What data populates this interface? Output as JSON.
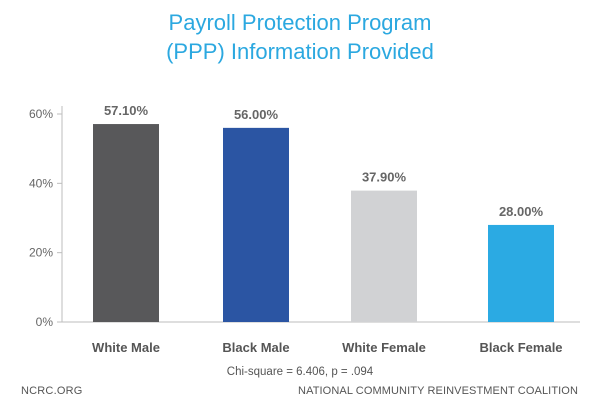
{
  "title_line1": "Payroll Protection Program",
  "title_line2": "(PPP) Information Provided",
  "footnote": "Chi-square = 6.406, p = .094",
  "footer_left": "NCRC.ORG",
  "footer_right": "NATIONAL COMMUNITY REINVESTMENT COALITION",
  "chart_data": {
    "type": "bar",
    "title": "Payroll Protection Program (PPP) Information Provided",
    "categories": [
      "White Male",
      "Black Male",
      "White Female",
      "Black Female"
    ],
    "values": [
      57.1,
      56.0,
      37.9,
      28.0
    ],
    "value_labels": [
      "57.10%",
      "56.00%",
      "37.90%",
      "28.00%"
    ],
    "colors": [
      "#58585a",
      "#2b55a3",
      "#d1d2d4",
      "#2baae3"
    ],
    "yticks": [
      "0%",
      "20%",
      "40%",
      "60%"
    ],
    "ylim": [
      0,
      60
    ],
    "xlabel": "",
    "ylabel": "",
    "grid": false,
    "legend": "none"
  }
}
